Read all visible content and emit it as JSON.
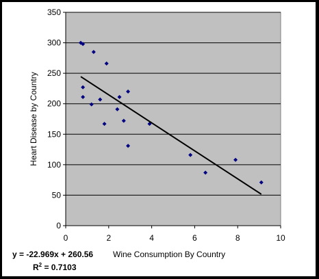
{
  "chart_data": {
    "type": "scatter",
    "title": "",
    "xlabel": "Wine Consumption By Country",
    "ylabel": "Heart Disease by Country",
    "xlim": [
      0,
      10
    ],
    "ylim": [
      0,
      350
    ],
    "xticks": [
      0,
      2,
      4,
      6,
      8,
      10
    ],
    "yticks": [
      0,
      50,
      100,
      150,
      200,
      250,
      300,
      350
    ],
    "grid": "horizontal",
    "legend": "none",
    "plot_background": "#c0c0c0",
    "marker_color": "#000080",
    "trendline": {
      "slope": -22.969,
      "intercept": 260.56,
      "x_range": [
        0.7,
        9.1
      ],
      "color": "#000000"
    },
    "equation_text": "y = -22.969x + 260.56",
    "r2_label": "R",
    "r2_sup": "2",
    "r2_value": " = 0.7103",
    "series": [
      {
        "points": [
          [
            0.7,
            300
          ],
          [
            0.8,
            298
          ],
          [
            1.3,
            285
          ],
          [
            1.9,
            266
          ],
          [
            0.8,
            227
          ],
          [
            0.8,
            211
          ],
          [
            1.2,
            199
          ],
          [
            1.6,
            207
          ],
          [
            1.8,
            167
          ],
          [
            2.4,
            191
          ],
          [
            2.5,
            211
          ],
          [
            2.9,
            220
          ],
          [
            2.7,
            172
          ],
          [
            2.9,
            131
          ],
          [
            3.9,
            167
          ],
          [
            5.8,
            116
          ],
          [
            6.5,
            87
          ],
          [
            7.9,
            108
          ],
          [
            9.1,
            71
          ]
        ]
      }
    ]
  }
}
